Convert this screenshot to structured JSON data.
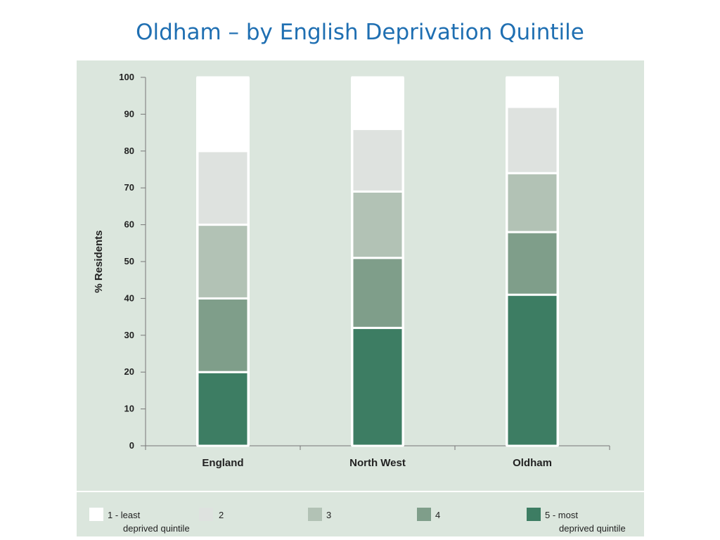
{
  "page": {
    "title": "Oldham – by English Deprivation Quintile"
  },
  "chart_data": {
    "type": "bar",
    "stacked": true,
    "title": "",
    "ylabel": "% Residents",
    "xlabel": "",
    "ylim": [
      0,
      100
    ],
    "yticks": [
      "0",
      "10",
      "20",
      "30",
      "40",
      "50",
      "60",
      "70",
      "80",
      "90",
      "100"
    ],
    "categories": [
      "England",
      "North West",
      "Oldham"
    ],
    "series": [
      {
        "name": "5 - most deprived quintile",
        "color": "#3d7d63",
        "values": [
          20,
          32,
          41
        ]
      },
      {
        "name": "4",
        "color": "#7f9e8a",
        "values": [
          20,
          19,
          17
        ]
      },
      {
        "name": "3",
        "color": "#b2c2b5",
        "values": [
          20,
          18,
          16
        ]
      },
      {
        "name": "2",
        "color": "#dee2df",
        "values": [
          20,
          17,
          18
        ]
      },
      {
        "name": "1 - least deprived quintile",
        "color": "#ffffff",
        "values": [
          20,
          14,
          8
        ]
      }
    ],
    "legend_position": "bottom",
    "grid": false
  },
  "legend": {
    "items": [
      {
        "label": "1 - least",
        "sub": "deprived quintile",
        "color": "#ffffff"
      },
      {
        "label": "2",
        "sub": "",
        "color": "#dee2df"
      },
      {
        "label": "3",
        "sub": "",
        "color": "#b2c2b5"
      },
      {
        "label": "4",
        "sub": "",
        "color": "#7f9e8a"
      },
      {
        "label": "5 - most",
        "sub": "deprived quintile",
        "color": "#3d7d63"
      }
    ]
  }
}
